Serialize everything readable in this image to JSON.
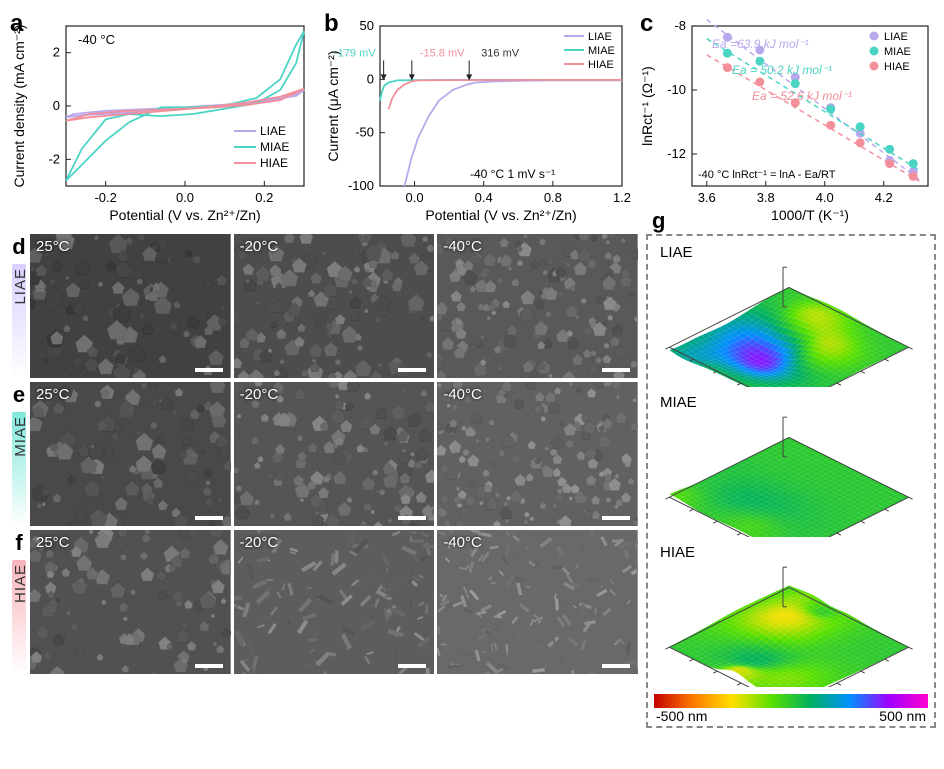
{
  "colors": {
    "liae": "#b9a8ec",
    "miae": "#4bd4c4",
    "hiae": "#f28f9a",
    "axis": "#222222",
    "grid": "#dddddd"
  },
  "panel_a": {
    "label": "a",
    "note": "-40 °C",
    "xlabel": "Potential (V vs. Zn²⁺/Zn)",
    "ylabel": "Current density (mA cm⁻²)",
    "xlim": [
      -0.3,
      0.3
    ],
    "xticks": [
      -0.2,
      0.0,
      0.2
    ],
    "ylim": [
      -3,
      3
    ],
    "yticks": [
      -2,
      0,
      2
    ],
    "legend": [
      "LIAE",
      "MIAE",
      "HIAE"
    ],
    "series": {
      "liae_fwd": [
        [
          -0.3,
          -0.42
        ],
        [
          -0.25,
          -0.33
        ],
        [
          -0.2,
          -0.3
        ],
        [
          -0.1,
          -0.22
        ],
        [
          0.0,
          -0.1
        ],
        [
          0.1,
          0.02
        ],
        [
          0.2,
          0.15
        ],
        [
          0.28,
          0.45
        ],
        [
          0.3,
          0.6
        ]
      ],
      "liae_rev": [
        [
          0.3,
          0.6
        ],
        [
          0.28,
          0.38
        ],
        [
          0.2,
          0.2
        ],
        [
          0.1,
          0.05
        ],
        [
          0.0,
          -0.05
        ],
        [
          -0.1,
          -0.12
        ],
        [
          -0.2,
          -0.18
        ],
        [
          -0.28,
          -0.3
        ],
        [
          -0.3,
          -0.42
        ]
      ],
      "miae_fwd": [
        [
          -0.3,
          -2.8
        ],
        [
          -0.26,
          -2.2
        ],
        [
          -0.2,
          -1.3
        ],
        [
          -0.14,
          -0.6
        ],
        [
          -0.06,
          -0.05
        ],
        [
          0.02,
          -0.05
        ],
        [
          0.1,
          0.02
        ],
        [
          0.18,
          0.3
        ],
        [
          0.24,
          1.0
        ],
        [
          0.28,
          2.3
        ],
        [
          0.3,
          2.8
        ]
      ],
      "miae_rev": [
        [
          0.3,
          2.8
        ],
        [
          0.28,
          1.6
        ],
        [
          0.24,
          0.6
        ],
        [
          0.18,
          0.1
        ],
        [
          0.1,
          -0.1
        ],
        [
          0.02,
          -0.3
        ],
        [
          -0.06,
          -0.38
        ],
        [
          -0.14,
          -0.3
        ],
        [
          -0.2,
          -0.5
        ],
        [
          -0.26,
          -1.6
        ],
        [
          -0.3,
          -2.8
        ]
      ],
      "hiae_fwd": [
        [
          -0.3,
          -0.55
        ],
        [
          -0.24,
          -0.42
        ],
        [
          -0.16,
          -0.32
        ],
        [
          -0.08,
          -0.22
        ],
        [
          0.0,
          -0.12
        ],
        [
          0.08,
          0.0
        ],
        [
          0.16,
          0.14
        ],
        [
          0.24,
          0.35
        ],
        [
          0.3,
          0.65
        ]
      ],
      "hiae_rev": [
        [
          0.3,
          0.65
        ],
        [
          0.24,
          0.22
        ],
        [
          0.16,
          0.05
        ],
        [
          0.08,
          -0.05
        ],
        [
          0.0,
          -0.1
        ],
        [
          -0.08,
          -0.15
        ],
        [
          -0.16,
          -0.2
        ],
        [
          -0.24,
          -0.3
        ],
        [
          -0.3,
          -0.55
        ]
      ]
    }
  },
  "panel_b": {
    "label": "b",
    "note_left": "-40 °C",
    "note_right": "1 mV s⁻¹",
    "xlabel": "Potential (V vs. Zn²⁺/Zn)",
    "ylabel": "Current (μA cm⁻²)",
    "xlim": [
      -0.2,
      1.2
    ],
    "xticks": [
      0.0,
      0.4,
      0.8,
      1.2
    ],
    "ylim": [
      -100,
      50
    ],
    "yticks": [
      -100,
      -50,
      0,
      50
    ],
    "legend": [
      "LIAE",
      "MIAE",
      "HIAE"
    ],
    "arrows": [
      {
        "label": "-179 mV",
        "x": -0.179,
        "color": "#4bd4c4"
      },
      {
        "label": "-15.8 mV",
        "x": -0.0158,
        "color": "#f28f9a"
      },
      {
        "label": "316 mV",
        "x": 0.316,
        "color": "#333333"
      }
    ],
    "series": {
      "liae": [
        [
          1.2,
          -1
        ],
        [
          1.0,
          -1
        ],
        [
          0.8,
          -1
        ],
        [
          0.6,
          -1.5
        ],
        [
          0.45,
          -2
        ],
        [
          0.35,
          -3
        ],
        [
          0.3,
          -5
        ],
        [
          0.22,
          -10
        ],
        [
          0.14,
          -20
        ],
        [
          0.08,
          -35
        ],
        [
          0.02,
          -55
        ],
        [
          -0.02,
          -75
        ],
        [
          -0.05,
          -95
        ],
        [
          -0.06,
          -100
        ]
      ],
      "miae": [
        [
          1.2,
          -0.5
        ],
        [
          0.8,
          -0.5
        ],
        [
          0.4,
          -0.5
        ],
        [
          0.1,
          -0.6
        ],
        [
          -0.02,
          -0.7
        ],
        [
          -0.1,
          -1.0
        ],
        [
          -0.15,
          -3
        ],
        [
          -0.175,
          -6
        ],
        [
          -0.19,
          -12
        ],
        [
          -0.2,
          -20
        ]
      ],
      "hiae": [
        [
          1.2,
          -0.5
        ],
        [
          0.8,
          -0.5
        ],
        [
          0.4,
          -0.6
        ],
        [
          0.1,
          -0.8
        ],
        [
          0.02,
          -1.0
        ],
        [
          -0.02,
          -2
        ],
        [
          -0.06,
          -5
        ],
        [
          -0.1,
          -10
        ],
        [
          -0.13,
          -18
        ],
        [
          -0.15,
          -28
        ]
      ]
    }
  },
  "panel_c": {
    "label": "c",
    "xlabel": "1000/T (K⁻¹)",
    "ylabel": "lnRct⁻¹ (Ω⁻¹)",
    "equation": "lnRct⁻¹ = lnA - Ea/RT",
    "note": "-40 °C",
    "legend": [
      "LIAE",
      "MIAE",
      "HIAE"
    ],
    "xlim": [
      3.55,
      4.35
    ],
    "xticks": [
      3.6,
      3.8,
      4.0,
      4.2
    ],
    "ylim": [
      -13,
      -8
    ],
    "yticks": [
      -12,
      -10,
      -8
    ],
    "ea_labels": [
      {
        "txt": "Ea =63.9 kJ mol⁻¹",
        "color": "#b9a8ec"
      },
      {
        "txt": "Ea = 50.2 kJ mol⁻¹",
        "color": "#4bd4c4"
      },
      {
        "txt": "Ea = 52.6 kJ mol⁻¹",
        "color": "#f28f9a"
      }
    ],
    "points": {
      "liae": [
        [
          3.67,
          -8.35
        ],
        [
          3.78,
          -8.75
        ],
        [
          3.9,
          -9.6
        ],
        [
          4.02,
          -10.55
        ],
        [
          4.12,
          -11.35
        ],
        [
          4.22,
          -12.2
        ],
        [
          4.3,
          -12.55
        ]
      ],
      "miae": [
        [
          3.67,
          -8.85
        ],
        [
          3.78,
          -9.1
        ],
        [
          3.9,
          -9.8
        ],
        [
          4.02,
          -10.6
        ],
        [
          4.12,
          -11.15
        ],
        [
          4.22,
          -11.85
        ],
        [
          4.3,
          -12.3
        ]
      ],
      "hiae": [
        [
          3.67,
          -9.3
        ],
        [
          3.78,
          -9.75
        ],
        [
          3.9,
          -10.4
        ],
        [
          4.02,
          -11.1
        ],
        [
          4.12,
          -11.65
        ],
        [
          4.22,
          -12.3
        ],
        [
          4.3,
          -12.7
        ]
      ]
    },
    "fits": {
      "liae": [
        [
          3.6,
          -7.8
        ],
        [
          4.32,
          -12.8
        ]
      ],
      "miae": [
        [
          3.6,
          -8.4
        ],
        [
          4.32,
          -12.5
        ]
      ],
      "hiae": [
        [
          3.6,
          -8.9
        ],
        [
          4.32,
          -12.85
        ]
      ]
    }
  },
  "sem": {
    "rows": [
      {
        "label": "d",
        "name": "LIAE",
        "bar_gradient": [
          "#d9ceff",
          "#ffffff"
        ],
        "temps": [
          "25°C",
          "-20°C",
          "-40°C"
        ]
      },
      {
        "label": "e",
        "name": "MIAE",
        "bar_gradient": [
          "#7fe8da",
          "#ffffff"
        ],
        "temps": [
          "25°C",
          "-20°C",
          "-40°C"
        ]
      },
      {
        "label": "f",
        "name": "HIAE",
        "bar_gradient": [
          "#f7b3bb",
          "#ffffff"
        ],
        "temps": [
          "25°C",
          "-20°C",
          "-40°C"
        ]
      }
    ]
  },
  "panel_g": {
    "label": "g",
    "items": [
      "LIAE",
      "MIAE",
      "HIAE"
    ],
    "colorbar": {
      "min": "-500 nm",
      "max": "500 nm",
      "stops": [
        "#c40000",
        "#ff7a00",
        "#ffe000",
        "#58e000",
        "#00b060",
        "#0090ff",
        "#a000ff",
        "#ff00d0"
      ]
    }
  }
}
